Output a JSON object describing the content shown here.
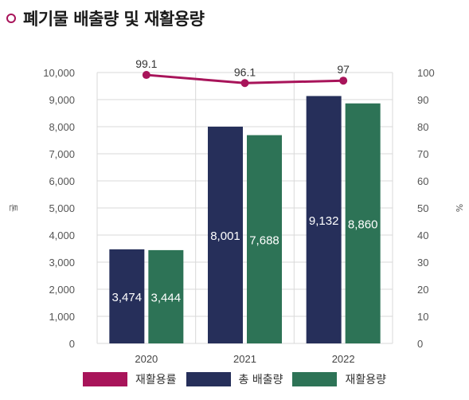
{
  "title": "폐기물 배출량 및 재활용량",
  "colors": {
    "accent": "#a8145a",
    "emission": "#262f5a",
    "recycled": "#2d7356",
    "rate": "#a8145a"
  },
  "legend": [
    {
      "label": "재활용률",
      "color": "#a8145a"
    },
    {
      "label": "총 배출량",
      "color": "#262f5a"
    },
    {
      "label": "재활용량",
      "color": "#2d7356"
    }
  ],
  "chart_data": {
    "type": "bar",
    "categories": [
      "2020",
      "2021",
      "2022"
    ],
    "series": [
      {
        "name": "총 배출량",
        "type": "bar",
        "axis": "left",
        "values": [
          3474,
          8001,
          9132
        ],
        "labels": [
          "3,474",
          "8,001",
          "9,132"
        ]
      },
      {
        "name": "재활용량",
        "type": "bar",
        "axis": "left",
        "values": [
          3444,
          7688,
          8860
        ],
        "labels": [
          "3,444",
          "7,688",
          "8,860"
        ]
      },
      {
        "name": "재활용률",
        "type": "line",
        "axis": "right",
        "values": [
          99.1,
          96.1,
          97
        ],
        "labels": [
          "99.1",
          "96.1",
          "97"
        ]
      }
    ],
    "ylabel": "톤",
    "y2label": "%",
    "ylim": [
      0,
      10000
    ],
    "y2lim": [
      0,
      100
    ],
    "yticks": [
      "0",
      "1,000",
      "2,000",
      "3,000",
      "4,000",
      "5,000",
      "6,000",
      "7,000",
      "8,000",
      "9,000",
      "10,000"
    ],
    "y2ticks": [
      "0",
      "10",
      "20",
      "30",
      "40",
      "50",
      "60",
      "70",
      "80",
      "90",
      "100"
    ],
    "grid": true,
    "legend_position": "bottom"
  }
}
